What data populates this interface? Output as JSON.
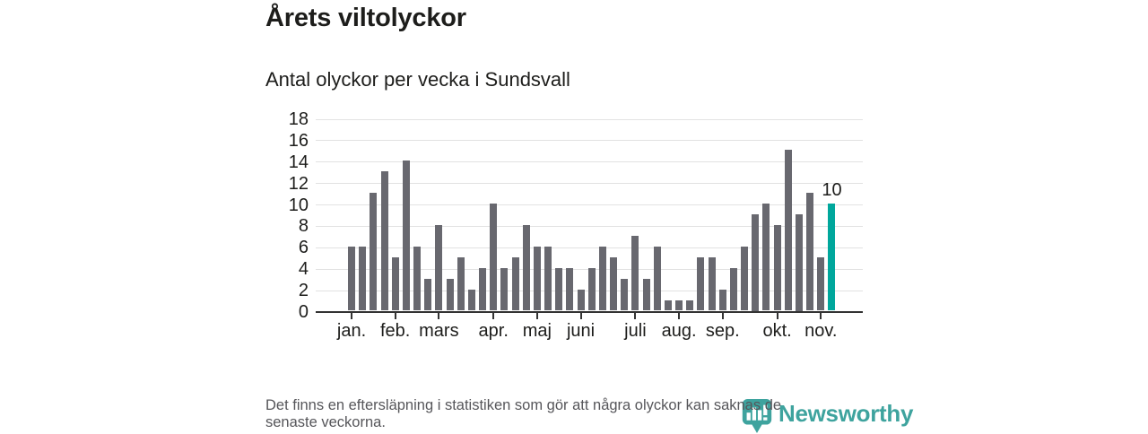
{
  "title": "Årets viltolyckor",
  "subtitle": "Antal olyckor per vecka i Sundsvall",
  "footer": {
    "line1": "Det finns en eftersläpning i statistiken som gör att några olyckor kan saknas de",
    "line2": "senaste veckorna."
  },
  "logo": {
    "text": "Newsworthy",
    "icon": "newsworthy-pin-barchart-icon",
    "color": "#2e9c96"
  },
  "colors": {
    "bar": "#68686f",
    "highlight": "#00a79c",
    "grid": "#e2e2e2",
    "axis": "#333333",
    "text": "#1d1d1b",
    "footer_text": "#56565a"
  },
  "chart_data": {
    "type": "bar",
    "title": "Årets viltolyckor",
    "subtitle": "Antal olyckor per vecka i Sundsvall",
    "x_unit": "vecka (week 1–45)",
    "values": [
      6,
      6,
      11,
      13,
      5,
      14,
      6,
      3,
      8,
      3,
      5,
      2,
      4,
      10,
      4,
      5,
      8,
      6,
      6,
      4,
      4,
      2,
      4,
      6,
      5,
      3,
      7,
      3,
      6,
      1,
      1,
      1,
      5,
      5,
      2,
      4,
      6,
      9,
      10,
      8,
      15,
      9,
      11,
      5,
      10
    ],
    "highlight_index": 44,
    "highlight_label": "10",
    "y_ticks": [
      0,
      2,
      4,
      6,
      8,
      10,
      12,
      14,
      16,
      18
    ],
    "ylim": [
      0,
      18
    ],
    "grid": true,
    "legend": false,
    "month_ticks": [
      {
        "index": 0,
        "label": "jan."
      },
      {
        "index": 4,
        "label": "feb."
      },
      {
        "index": 8,
        "label": "mars"
      },
      {
        "index": 13,
        "label": "apr."
      },
      {
        "index": 17,
        "label": "maj"
      },
      {
        "index": 21,
        "label": "juni"
      },
      {
        "index": 26,
        "label": "juli"
      },
      {
        "index": 30,
        "label": "aug."
      },
      {
        "index": 34,
        "label": "sep."
      },
      {
        "index": 39,
        "label": "okt."
      },
      {
        "index": 43,
        "label": "nov."
      }
    ]
  }
}
